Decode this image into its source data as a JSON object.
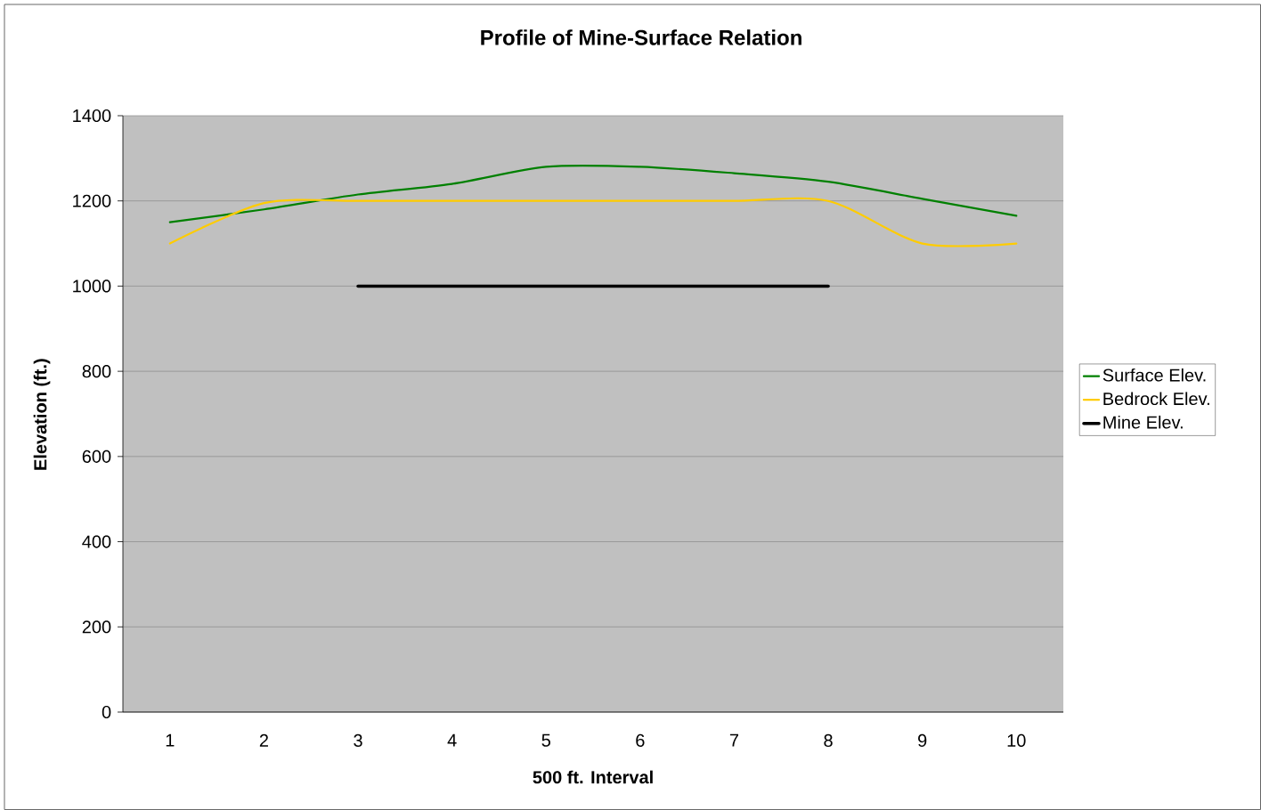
{
  "chart_data": {
    "type": "line",
    "title": "Profile of Mine-Surface Relation",
    "xlabel": "500 ft. Interval",
    "ylabel": "Elevation (ft.)",
    "categories": [
      "1",
      "2",
      "3",
      "4",
      "5",
      "6",
      "7",
      "8",
      "9",
      "10"
    ],
    "series": [
      {
        "name": "Surface Elev.",
        "color": "#008000",
        "values": [
          1150,
          1180,
          1215,
          1240,
          1280,
          1280,
          1265,
          1245,
          1205,
          1165
        ]
      },
      {
        "name": "Bedrock Elev.",
        "color": "#ffcc00",
        "values": [
          1100,
          1195,
          1200,
          1200,
          1200,
          1200,
          1200,
          1200,
          1100,
          1100
        ]
      },
      {
        "name": "Mine Elev.",
        "color": "#000000",
        "values": [
          null,
          null,
          1000,
          1000,
          1000,
          1000,
          1000,
          1000,
          null,
          null
        ]
      }
    ],
    "ylim": [
      0,
      1400
    ],
    "yticks": [
      0,
      200,
      400,
      600,
      800,
      1000,
      1200,
      1400
    ],
    "grid": "y",
    "legend": "right",
    "marker": "none",
    "line_style": "solid"
  }
}
